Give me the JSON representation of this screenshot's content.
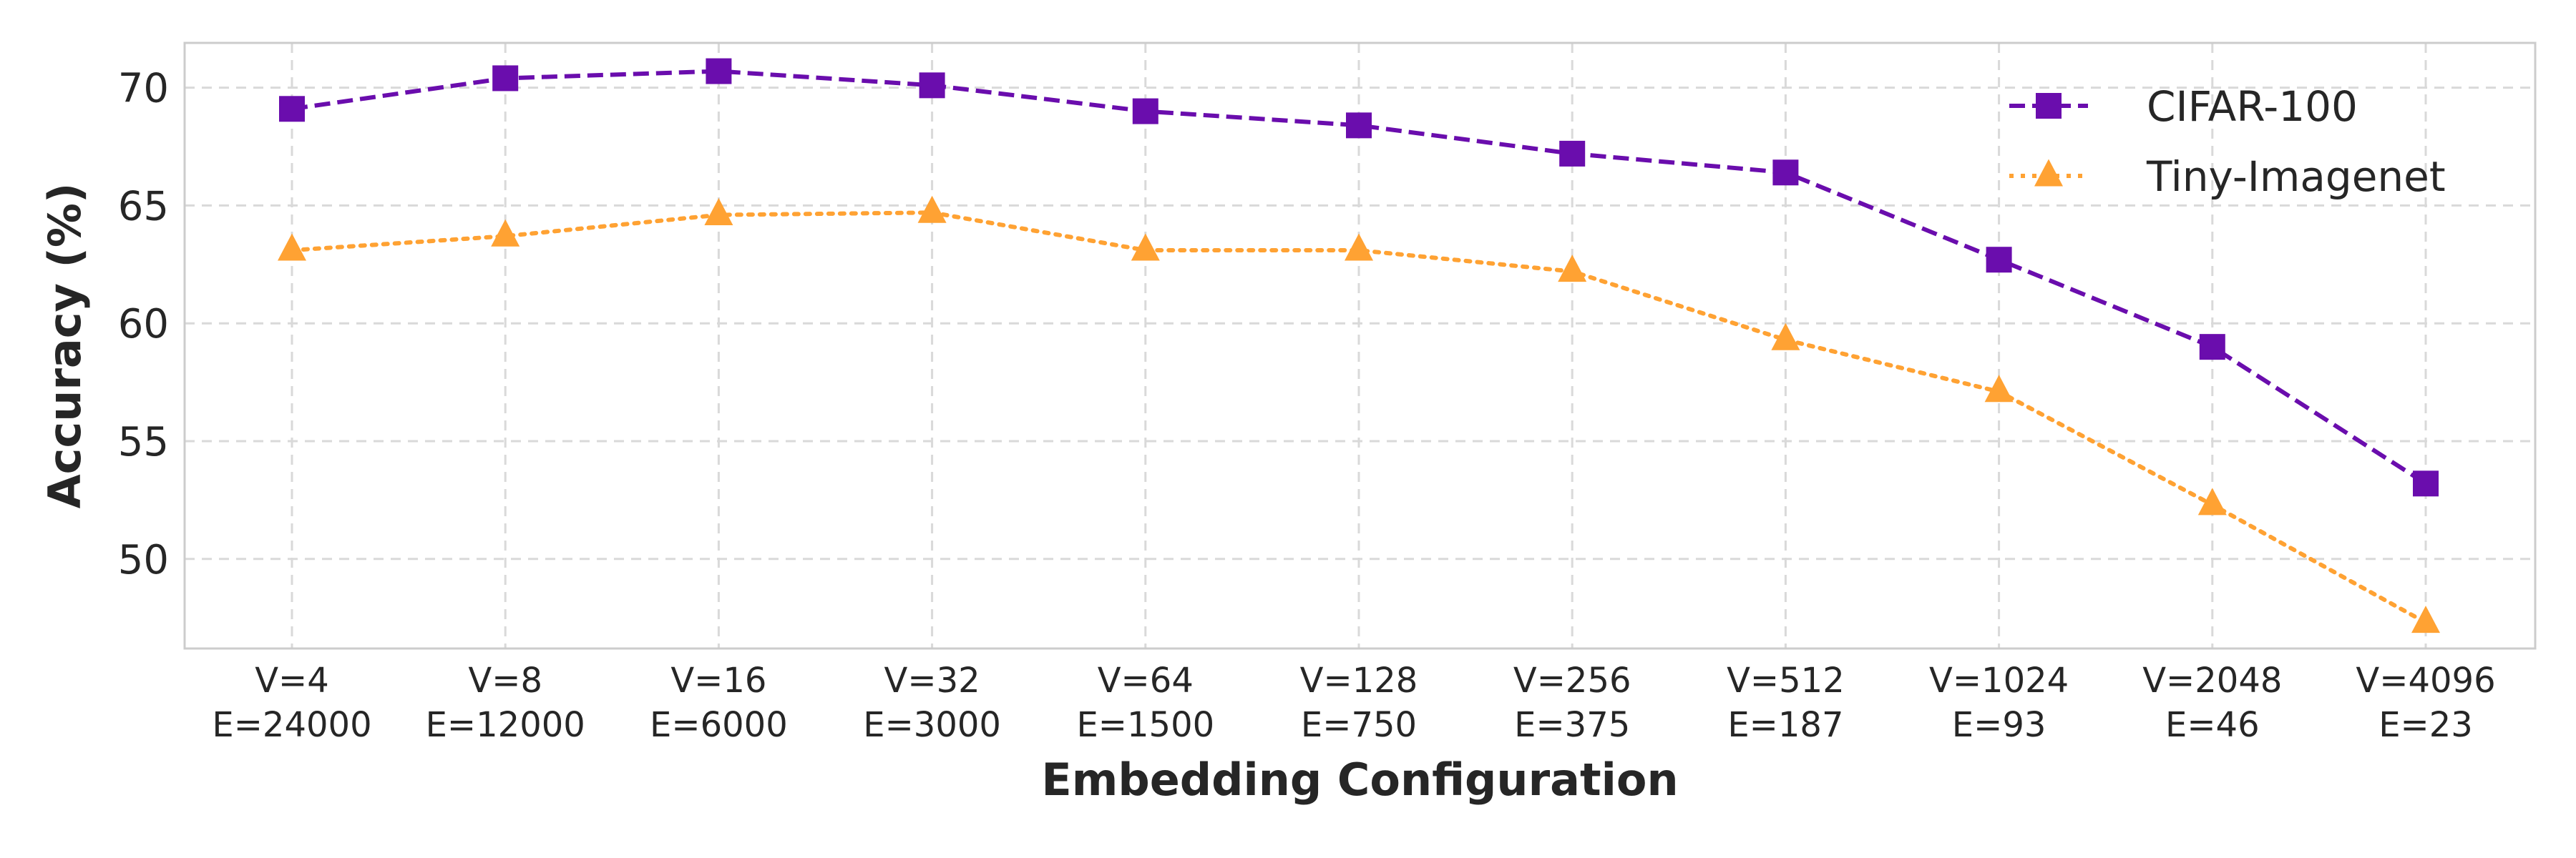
{
  "chart_data": {
    "type": "line",
    "title": "",
    "xlabel": "Embedding Configuration",
    "ylabel": "Accuracy (%)",
    "categories": [
      [
        "V=4",
        "E=24000"
      ],
      [
        "V=8",
        "E=12000"
      ],
      [
        "V=16",
        "E=6000"
      ],
      [
        "V=32",
        "E=3000"
      ],
      [
        "V=64",
        "E=1500"
      ],
      [
        "V=128",
        "E=750"
      ],
      [
        "V=256",
        "E=375"
      ],
      [
        "V=512",
        "E=187"
      ],
      [
        "V=1024",
        "E=93"
      ],
      [
        "V=2048",
        "E=46"
      ],
      [
        "V=4096",
        "E=23"
      ]
    ],
    "ylim": [
      46.2,
      71.9
    ],
    "yticks": [
      50,
      55,
      60,
      65,
      70
    ],
    "grid": true,
    "legend_position": "top-right",
    "series": [
      {
        "name": "CIFAR-100",
        "color": "#6a0dad",
        "marker": "square",
        "linestyle": "dashed",
        "values": [
          69.1,
          70.4,
          70.7,
          70.1,
          69.0,
          68.4,
          67.2,
          66.4,
          62.7,
          59.0,
          53.2
        ]
      },
      {
        "name": "Tiny-Imagenet",
        "color": "#ffa233",
        "marker": "triangle",
        "linestyle": "dotted",
        "values": [
          63.1,
          63.7,
          64.6,
          64.7,
          63.1,
          63.1,
          62.2,
          59.3,
          57.1,
          52.3,
          47.3
        ]
      }
    ]
  }
}
